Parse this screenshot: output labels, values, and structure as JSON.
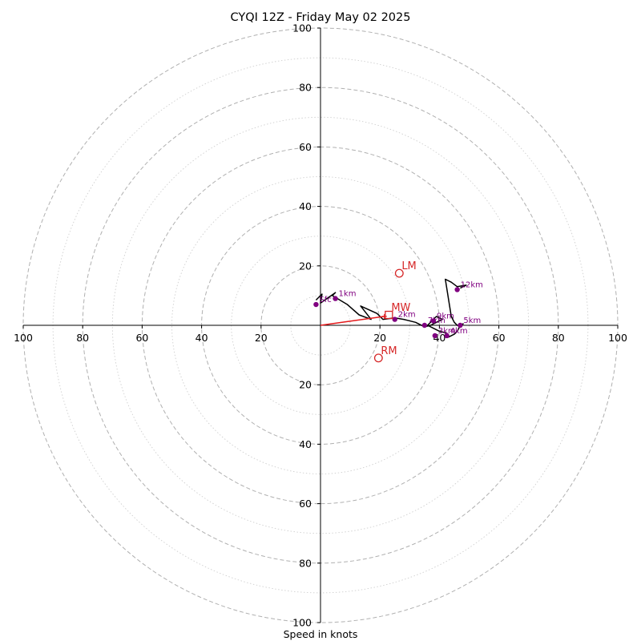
{
  "chart_data": {
    "type": "hodograph",
    "title": "CYQI 12Z - Friday May 02 2025",
    "xlabel": "Speed in knots",
    "units": "knots",
    "range": [
      -100,
      100
    ],
    "rings_major": [
      20,
      40,
      60,
      80,
      100
    ],
    "rings_minor": [
      10,
      30,
      50,
      70,
      90
    ],
    "tick_labels": {
      "x": [
        "100",
        "80",
        "60",
        "40",
        "20",
        "20",
        "40",
        "60",
        "80",
        "100"
      ],
      "y": [
        "100",
        "80",
        "60",
        "40",
        "20",
        "20",
        "40",
        "60",
        "80",
        "100"
      ]
    },
    "hodograph_trace": {
      "u": [
        -1.5,
        0.5,
        0,
        5,
        4,
        9,
        13,
        17,
        13.5,
        19,
        21,
        25,
        28,
        32,
        35,
        37,
        39,
        41,
        39,
        36,
        38,
        40,
        42,
        43,
        45,
        46,
        47,
        48,
        47,
        46,
        45,
        44,
        42,
        44,
        46,
        49,
        47
      ],
      "v": [
        8.5,
        10.5,
        7.5,
        11,
        10,
        7,
        3.5,
        2,
        6.5,
        4,
        2,
        2.5,
        2,
        1,
        -0.5,
        0,
        1,
        2,
        3,
        0,
        -1,
        -2,
        -2.5,
        -4,
        -3,
        -2,
        0,
        0.5,
        -0.5,
        0,
        1,
        3,
        15.5,
        14.5,
        13,
        13.5,
        12.5
      ]
    },
    "height_markers": [
      {
        "label": "Sfc",
        "u": -1.5,
        "v": 7
      },
      {
        "label": "1km",
        "u": 5,
        "v": 9
      },
      {
        "label": "2km",
        "u": 25,
        "v": 2
      },
      {
        "label": "3km",
        "u": 38.5,
        "v": -3.5
      },
      {
        "label": "4km",
        "u": 42.5,
        "v": -3.5
      },
      {
        "label": "5km",
        "u": 47,
        "v": 0
      },
      {
        "label": "7km",
        "u": 35,
        "v": 0
      },
      {
        "label": "9km",
        "u": 38,
        "v": 1.5
      },
      {
        "label": "12km",
        "u": 46,
        "v": 12
      }
    ],
    "storm_motion": [
      {
        "label": "LM",
        "u": 26.5,
        "v": 17.5,
        "marker": "circle"
      },
      {
        "label": "MW",
        "u": 23,
        "v": 3.5,
        "marker": "square"
      },
      {
        "label": "RM",
        "u": 19.5,
        "v": -11,
        "marker": "circle"
      }
    ],
    "storm_vector": {
      "from": [
        0,
        0
      ],
      "to": [
        21.5,
        3
      ]
    },
    "grid": true,
    "colors": {
      "trace": "#000000",
      "height_markers": "#800080",
      "storm_motion": "#d62728",
      "grid": "#b0b0b0"
    }
  }
}
